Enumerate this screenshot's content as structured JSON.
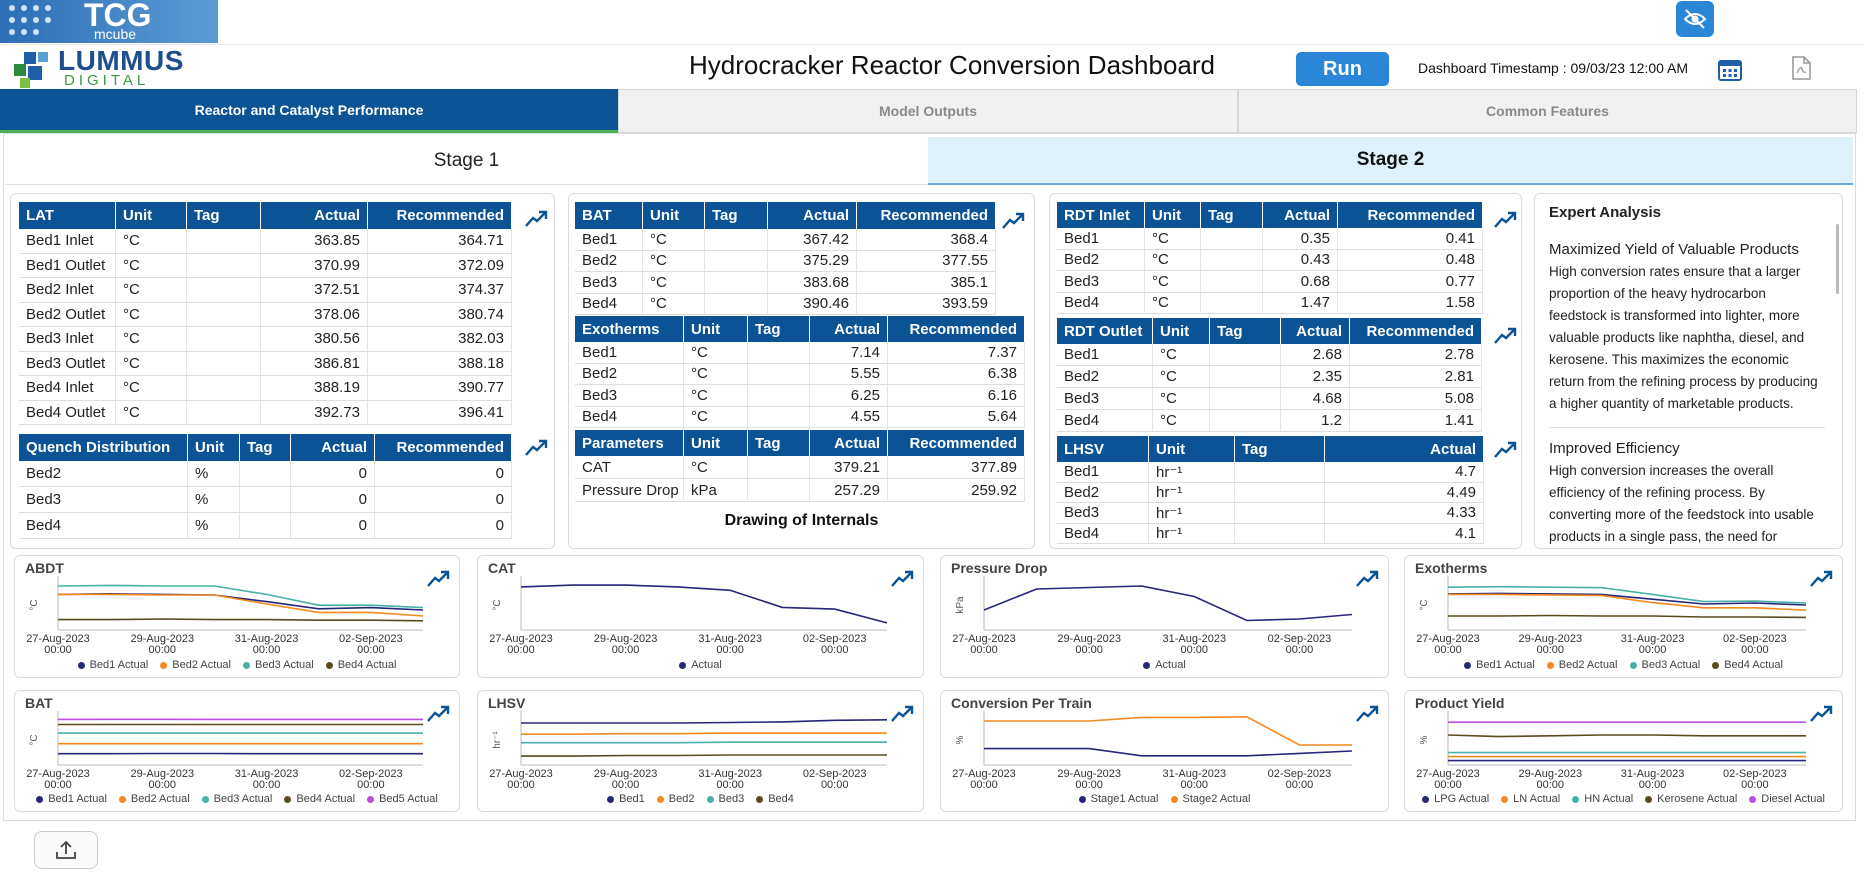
{
  "header": {
    "logo_top": "TCG",
    "logo_sub": "mcube",
    "brand": "LUMMUS",
    "brand_sub": "DIGITAL",
    "title": "Hydrocracker Reactor Conversion Dashboard",
    "run_button": "Run",
    "timestamp": "Dashboard Timestamp : 09/03/23 12:00 AM"
  },
  "tabs": [
    "Reactor and Catalyst Performance",
    "Model Outputs",
    "Common Features"
  ],
  "stages": [
    "Stage 1",
    "Stage 2"
  ],
  "tables": [
    {
      "columns": [
        "LAT",
        "Unit",
        "Tag",
        "Actual",
        "Recommended"
      ],
      "rows": [
        [
          "Bed1 Inlet",
          "°C",
          363.85,
          364.71
        ],
        [
          "Bed1 Outlet",
          "°C",
          370.99,
          372.09
        ],
        [
          "Bed2 Inlet",
          "°C",
          372.51,
          374.37
        ],
        [
          "Bed2 Outlet",
          "°C",
          378.06,
          380.74
        ],
        [
          "Bed3 Inlet",
          "°C",
          380.56,
          382.03
        ],
        [
          "Bed3 Outlet",
          "°C",
          386.81,
          388.18
        ],
        [
          "Bed4 Inlet",
          "°C",
          388.19,
          390.77
        ],
        [
          "Bed4 Outlet",
          "°C",
          392.73,
          396.41
        ]
      ]
    },
    {
      "columns": [
        "Quench Distribution",
        "Unit",
        "Tag",
        "Actual",
        "Recommended"
      ],
      "rows": [
        [
          "Bed2",
          "%",
          0,
          0
        ],
        [
          "Bed3",
          "%",
          0,
          0
        ],
        [
          "Bed4",
          "%",
          0,
          0
        ]
      ]
    },
    {
      "columns": [
        "BAT",
        "Unit",
        "Tag",
        "Actual",
        "Recommended"
      ],
      "rows": [
        [
          "Bed1",
          "°C",
          367.42,
          368.4
        ],
        [
          "Bed2",
          "°C",
          375.29,
          377.55
        ],
        [
          "Bed3",
          "°C",
          383.68,
          385.1
        ],
        [
          "Bed4",
          "°C",
          390.46,
          393.59
        ]
      ]
    },
    {
      "columns": [
        "Exotherms",
        "Unit",
        "Tag",
        "Actual",
        "Recommended"
      ],
      "rows": [
        [
          "Bed1",
          "°C",
          7.14,
          7.37
        ],
        [
          "Bed2",
          "°C",
          5.55,
          6.38
        ],
        [
          "Bed3",
          "°C",
          6.25,
          6.16
        ],
        [
          "Bed4",
          "°C",
          4.55,
          5.64
        ]
      ]
    },
    {
      "columns": [
        "Parameters",
        "Unit",
        "Tag",
        "Actual",
        "Recommended"
      ],
      "rows": [
        [
          "CAT",
          "°C",
          379.21,
          377.89
        ],
        [
          "Pressure Drop",
          "kPa",
          257.29,
          259.92
        ]
      ]
    },
    {
      "columns": [
        "RDT Inlet",
        "Unit",
        "Tag",
        "Actual",
        "Recommended"
      ],
      "rows": [
        [
          "Bed1",
          "°C",
          0.35,
          0.41
        ],
        [
          "Bed2",
          "°C",
          0.43,
          0.48
        ],
        [
          "Bed3",
          "°C",
          0.68,
          0.77
        ],
        [
          "Bed4",
          "°C",
          1.47,
          1.58
        ]
      ]
    },
    {
      "columns": [
        "RDT Outlet",
        "Unit",
        "Tag",
        "Actual",
        "Recommended"
      ],
      "rows": [
        [
          "Bed1",
          "°C",
          2.68,
          2.78
        ],
        [
          "Bed2",
          "°C",
          2.35,
          2.81
        ],
        [
          "Bed3",
          "°C",
          4.68,
          5.08
        ],
        [
          "Bed4",
          "°C",
          1.2,
          1.41
        ]
      ]
    },
    {
      "columns": [
        "LHSV",
        "Unit",
        "Tag",
        "Actual"
      ],
      "rows": [
        [
          "Bed1",
          "hr⁻¹",
          4.7
        ],
        [
          "Bed2",
          "hr⁻¹",
          4.49
        ],
        [
          "Bed3",
          "hr⁻¹",
          4.33
        ],
        [
          "Bed4",
          "hr⁻¹",
          4.1
        ]
      ]
    }
  ],
  "drawing_label": "Drawing of Internals",
  "expert_analysis": {
    "title": "Expert Analysis",
    "sections": [
      {
        "heading": "Maximized Yield of Valuable Products",
        "text": "High conversion rates ensure that a larger proportion of the heavy hydrocarbon feedstock is transformed into lighter, more valuable products like naphtha, diesel, and kerosene. This maximizes the economic return from the refining process by producing a higher quantity of marketable products."
      },
      {
        "heading": "Improved Efficiency",
        "text": "High conversion increases the overall efficiency of the refining process. By converting more of the feedstock into usable products in a single pass, the need for additional processing or recycling of"
      }
    ]
  },
  "charts": [
    {
      "type": "line",
      "title": "ABDT",
      "y_label": "°C",
      "categories": [
        "27-Aug-2023 00:00",
        null,
        "29-Aug-2023 00:00",
        null,
        "31-Aug-2023 00:00",
        null,
        "02-Sep-2023 00:00",
        null
      ],
      "ylim": [
        0,
        40
      ],
      "series": [
        {
          "name": "Bed1 Actual",
          "color": "#26267a",
          "values": [
            28,
            28.5,
            28,
            27.5,
            22,
            16,
            17,
            15
          ]
        },
        {
          "name": "Bed2 Actual",
          "color": "#f5891f",
          "values": [
            28,
            28,
            27.5,
            27.5,
            20,
            13,
            13,
            10
          ]
        },
        {
          "name": "Bed3 Actual",
          "color": "#48b0a8",
          "values": [
            35,
            35.5,
            35,
            35,
            28,
            19,
            19,
            17
          ]
        },
        {
          "name": "Bed4 Actual",
          "color": "#5b4a1f",
          "values": [
            7,
            7,
            7.5,
            7,
            7,
            6.5,
            6.5,
            6
          ]
        }
      ]
    },
    {
      "type": "line",
      "title": "CAT",
      "y_label": "°C",
      "categories": [
        "27-Aug-2023 00:00",
        null,
        "29-Aug-2023 00:00",
        null,
        "31-Aug-2023 00:00",
        null,
        "02-Sep-2023 00:00",
        null
      ],
      "ylim": [
        368,
        382
      ],
      "series": [
        {
          "name": "Actual",
          "color": "#26267a",
          "values": [
            380,
            380.5,
            380.5,
            380,
            379,
            374,
            373.5,
            369.5
          ]
        }
      ]
    },
    {
      "type": "line",
      "title": "Pressure Drop",
      "y_label": "kPa",
      "categories": [
        "27-Aug-2023 00:00",
        null,
        "29-Aug-2023 00:00",
        null,
        "31-Aug-2023 00:00",
        null,
        "02-Sep-2023 00:00",
        null
      ],
      "ylim": [
        248,
        264
      ],
      "series": [
        {
          "name": "Actual",
          "color": "#26267a",
          "values": [
            254,
            261,
            261.5,
            262,
            258.5,
            250.5,
            251,
            252.5
          ]
        }
      ]
    },
    {
      "type": "line",
      "title": "Exotherms",
      "y_label": "°C",
      "categories": [
        "27-Aug-2023 00:00",
        null,
        "29-Aug-2023 00:00",
        null,
        "31-Aug-2023 00:00",
        null,
        "02-Sep-2023 00:00",
        null
      ],
      "ylim": [
        0,
        10
      ],
      "series": [
        {
          "name": "Bed1 Actual",
          "color": "#26267a",
          "values": [
            7.1,
            7.2,
            7.1,
            7,
            6,
            5,
            5.2,
            4.8
          ]
        },
        {
          "name": "Bed2 Actual",
          "color": "#f5891f",
          "values": [
            7,
            7,
            6.9,
            6.8,
            5.3,
            4.2,
            4.2,
            3.7
          ]
        },
        {
          "name": "Bed3 Actual",
          "color": "#48b0a8",
          "values": [
            8.5,
            8.6,
            8.5,
            8.4,
            7,
            5.5,
            5.6,
            5.2
          ]
        },
        {
          "name": "Bed4 Actual",
          "color": "#5b4a1f",
          "values": [
            2.5,
            2.5,
            2.6,
            2.5,
            2.5,
            2.3,
            2.3,
            2.2
          ]
        }
      ]
    },
    {
      "type": "line",
      "title": "BAT",
      "y_label": "°C",
      "categories": [
        "27-Aug-2023 00:00",
        null,
        "29-Aug-2023 00:00",
        null,
        "31-Aug-2023 00:00",
        null,
        "02-Sep-2023 00:00",
        null
      ],
      "ylim": [
        360,
        398
      ],
      "series": [
        {
          "name": "Bed1 Actual",
          "color": "#26267a",
          "values": [
            367.4,
            367.4,
            367.5,
            367.5,
            367.4,
            367.4,
            367.4,
            367.4
          ]
        },
        {
          "name": "Bed2 Actual",
          "color": "#f5891f",
          "values": [
            375.3,
            375.3,
            375.3,
            375.3,
            375.3,
            375.3,
            375.3,
            375.3
          ]
        },
        {
          "name": "Bed3 Actual",
          "color": "#48b0a8",
          "values": [
            383.7,
            383.7,
            383.7,
            383.7,
            383.7,
            383.7,
            383.7,
            383.7
          ]
        },
        {
          "name": "Bed4 Actual",
          "color": "#5b4a1f",
          "values": [
            390.5,
            390.5,
            390.5,
            390.5,
            390.5,
            390.5,
            390.5,
            390.5
          ]
        },
        {
          "name": "Bed5 Actual",
          "color": "#b94fe0",
          "values": [
            394.5,
            394.6,
            394.6,
            394.5,
            394.5,
            394.5,
            394.5,
            394.5
          ]
        }
      ]
    },
    {
      "type": "line",
      "title": "LHSV",
      "y_label": "hr⁻¹",
      "categories": [
        "27-Aug-2023 00:00",
        null,
        "29-Aug-2023 00:00",
        null,
        "31-Aug-2023 00:00",
        null,
        "02-Sep-2023 00:00",
        null
      ],
      "ylim": [
        3.95,
        4.85
      ],
      "series": [
        {
          "name": "Bed1",
          "color": "#26267a",
          "values": [
            4.7,
            4.7,
            4.7,
            4.7,
            4.71,
            4.72,
            4.75,
            4.76
          ]
        },
        {
          "name": "Bed2",
          "color": "#f5891f",
          "values": [
            4.49,
            4.49,
            4.5,
            4.5,
            4.51,
            4.51,
            4.51,
            4.51
          ]
        },
        {
          "name": "Bed3",
          "color": "#48b0a8",
          "values": [
            4.33,
            4.33,
            4.33,
            4.33,
            4.34,
            4.34,
            4.34,
            4.34
          ]
        },
        {
          "name": "Bed4",
          "color": "#5b4a1f",
          "values": [
            4.08,
            4.08,
            4.09,
            4.09,
            4.1,
            4.1,
            4.1,
            4.1
          ]
        }
      ]
    },
    {
      "type": "line",
      "title": "Conversion Per Train",
      "y_label": "%",
      "categories": [
        "27-Aug-2023 00:00",
        null,
        "29-Aug-2023 00:00",
        null,
        "31-Aug-2023 00:00",
        null,
        "02-Sep-2023 00:00",
        null
      ],
      "ylim": [
        60,
        100
      ],
      "series": [
        {
          "name": "Stage1 Actual",
          "color": "#26267a",
          "values": [
            72,
            72,
            72,
            66,
            66,
            66,
            68,
            70
          ]
        },
        {
          "name": "Stage2 Actual",
          "color": "#f5891f",
          "values": [
            95,
            95,
            95,
            98,
            98,
            98.5,
            75,
            75
          ]
        }
      ]
    },
    {
      "type": "line",
      "title": "Product Yield",
      "y_label": "%",
      "categories": [
        "27-Aug-2023 00:00",
        null,
        "29-Aug-2023 00:00",
        null,
        "31-Aug-2023 00:00",
        null,
        "02-Sep-2023 00:00",
        null
      ],
      "ylim": [
        0,
        60
      ],
      "series": [
        {
          "name": "LPG Actual",
          "color": "#26267a",
          "values": [
            3,
            3,
            3,
            3,
            3,
            3,
            3,
            3
          ]
        },
        {
          "name": "LN Actual",
          "color": "#f5891f",
          "values": [
            8,
            8,
            8,
            8,
            8,
            8,
            8,
            8
          ]
        },
        {
          "name": "HN Actual",
          "color": "#48b0a8",
          "values": [
            13,
            13,
            13,
            13,
            13,
            13,
            13,
            13
          ]
        },
        {
          "name": "Kerosene Actual",
          "color": "#5b4a1f",
          "values": [
            35,
            33,
            34,
            35,
            35,
            34,
            34,
            34
          ]
        },
        {
          "name": "Diesel Actual",
          "color": "#b94fe0",
          "values": [
            51,
            51,
            51,
            51,
            51,
            51,
            51,
            51
          ]
        }
      ]
    }
  ]
}
